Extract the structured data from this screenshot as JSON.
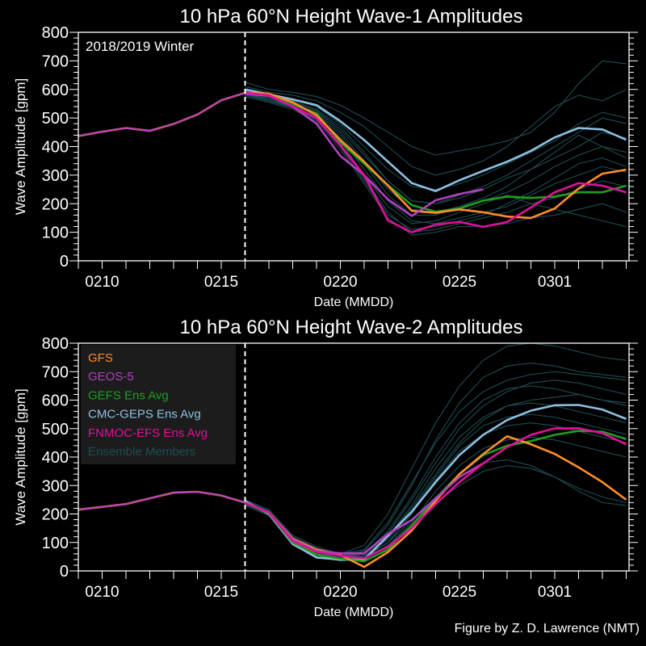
{
  "footer": "Figure by Z. D. Lawrence (NMT)",
  "colors": {
    "background": "#000000",
    "axes": "#ffffff",
    "GFS": "#ff8c2a",
    "GEOS-5": "#b040c0",
    "GEFS Ens Avg": "#1e9e1e",
    "CMC-GEPS Ens Avg": "#8ec0e0",
    "FNMOC-EFS Ens Avg": "#e0109a",
    "Ensemble Members": "#1f4d54",
    "legend_bg": "#1c1c1c"
  },
  "legend": {
    "placement": "top-left (lower panel)",
    "entries": [
      "GFS",
      "GEOS-5",
      "GEFS Ens Avg",
      "CMC-GEPS Ens Avg",
      "FNMOC-EFS Ens Avg",
      "Ensemble Members"
    ]
  },
  "chart_data": [
    {
      "type": "line",
      "title": "10 hPa 60°N   Height Wave-1 Amplitudes",
      "annotation": "2018/2019 Winter",
      "xlabel": "Date (MMDD)",
      "ylabel": "Wave Amplitude [gpm]",
      "xlim": [
        "0209",
        "0304"
      ],
      "ylim": [
        0,
        800
      ],
      "yticks": [
        0,
        100,
        200,
        300,
        400,
        500,
        600,
        700,
        800
      ],
      "xtick_labels": [
        "0210",
        "0215",
        "0220",
        "0225",
        "0301"
      ],
      "forecast_start": "0216",
      "grid": false,
      "observed": {
        "x": [
          "0209",
          "0210",
          "0211",
          "0212",
          "0213",
          "0214",
          "0215",
          "0216"
        ],
        "values": [
          437,
          452,
          465,
          455,
          479,
          512,
          562,
          588
        ]
      },
      "forecast_x": [
        "0216",
        "0217",
        "0218",
        "0219",
        "0220",
        "0221",
        "0222",
        "0223",
        "0224",
        "0225",
        "0226",
        "0227",
        "0228",
        "0301",
        "0302",
        "0303",
        "0304"
      ],
      "series": [
        {
          "name": "GFS",
          "values": [
            588,
            585,
            555,
            510,
            423,
            347,
            263,
            175,
            168,
            180,
            170,
            155,
            150,
            183,
            253,
            305,
            319
          ]
        },
        {
          "name": "GEOS-5",
          "values": [
            585,
            578,
            540,
            480,
            367,
            300,
            215,
            157,
            212,
            234,
            250
          ]
        },
        {
          "name": "GEFS Ens Avg",
          "values": [
            590,
            580,
            550,
            515,
            415,
            340,
            265,
            195,
            172,
            183,
            211,
            225,
            220,
            225,
            240,
            240,
            263
          ]
        },
        {
          "name": "CMC-GEPS Ens Avg",
          "values": [
            600,
            583,
            565,
            545,
            489,
            423,
            347,
            272,
            244,
            282,
            315,
            347,
            385,
            432,
            465,
            460,
            424
          ]
        },
        {
          "name": "FNMOC-EFS Ens Avg",
          "values": [
            588,
            580,
            540,
            500,
            404,
            300,
            141,
            100,
            127,
            136,
            119,
            136,
            187,
            240,
            272,
            263,
            240
          ]
        }
      ],
      "ensemble_members": [
        [
          625,
          600,
          590,
          575,
          545,
          500,
          450,
          400,
          370,
          385,
          400,
          420,
          450,
          520,
          620,
          700,
          690
        ],
        [
          610,
          590,
          580,
          560,
          520,
          470,
          400,
          330,
          300,
          320,
          350,
          400,
          470,
          540,
          580,
          560,
          600
        ],
        [
          600,
          580,
          565,
          540,
          480,
          400,
          320,
          260,
          250,
          270,
          300,
          340,
          380,
          420,
          480,
          520,
          500
        ],
        [
          595,
          575,
          560,
          530,
          470,
          380,
          280,
          210,
          200,
          220,
          250,
          290,
          320,
          360,
          400,
          450,
          430
        ],
        [
          590,
          570,
          550,
          520,
          450,
          350,
          250,
          180,
          170,
          190,
          210,
          240,
          280,
          330,
          370,
          400,
          380
        ],
        [
          585,
          565,
          545,
          510,
          430,
          320,
          210,
          140,
          130,
          150,
          170,
          190,
          230,
          270,
          300,
          330,
          310
        ],
        [
          580,
          560,
          540,
          500,
          410,
          290,
          170,
          100,
          110,
          130,
          150,
          170,
          200,
          220,
          250,
          280,
          260
        ],
        [
          575,
          555,
          530,
          490,
          390,
          270,
          150,
          90,
          100,
          120,
          120,
          130,
          150,
          160,
          180,
          200,
          170
        ],
        [
          590,
          565,
          540,
          505,
          420,
          300,
          190,
          130,
          140,
          170,
          200,
          230,
          200,
          180,
          160,
          140,
          120
        ],
        [
          600,
          575,
          555,
          525,
          460,
          370,
          280,
          210,
          200,
          230,
          260,
          300,
          350,
          400,
          450,
          500,
          480
        ],
        [
          595,
          570,
          550,
          515,
          440,
          340,
          230,
          160,
          160,
          190,
          220,
          260,
          320,
          380,
          440,
          400,
          360
        ],
        [
          585,
          560,
          535,
          495,
          400,
          280,
          160,
          110,
          120,
          140,
          160,
          200,
          240,
          290,
          340,
          360,
          330
        ]
      ]
    },
    {
      "type": "line",
      "title": "10 hPa 60°N   Height Wave-2 Amplitudes",
      "xlabel": "Date (MMDD)",
      "ylabel": "Wave Amplitude [gpm]",
      "xlim": [
        "0209",
        "0304"
      ],
      "ylim": [
        0,
        800
      ],
      "yticks": [
        0,
        100,
        200,
        300,
        400,
        500,
        600,
        700,
        800
      ],
      "xtick_labels": [
        "0210",
        "0215",
        "0220",
        "0225",
        "0301"
      ],
      "forecast_start": "0216",
      "grid": false,
      "observed": {
        "x": [
          "0209",
          "0210",
          "0211",
          "0212",
          "0213",
          "0214",
          "0215",
          "0216"
        ],
        "values": [
          215,
          225,
          235,
          255,
          275,
          278,
          265,
          240
        ]
      },
      "forecast_x": [
        "0216",
        "0217",
        "0218",
        "0219",
        "0220",
        "0221",
        "0222",
        "0223",
        "0224",
        "0225",
        "0226",
        "0227",
        "0228",
        "0301",
        "0302",
        "0303",
        "0304"
      ],
      "series": [
        {
          "name": "GFS",
          "values": [
            240,
            205,
            113,
            75,
            56,
            14,
            66,
            142,
            246,
            340,
            411,
            473,
            445,
            411,
            364,
            312,
            250
          ]
        },
        {
          "name": "GEOS-5",
          "values": [
            240,
            205,
            110,
            70,
            62,
            62,
            130,
            179,
            254,
            330,
            378
          ]
        },
        {
          "name": "GEFS Ens Avg",
          "values": [
            240,
            203,
            100,
            57,
            43,
            34,
            75,
            160,
            254,
            340,
            407,
            440,
            456,
            478,
            492,
            489,
            463
          ]
        },
        {
          "name": "CMC-GEPS Ens Avg",
          "values": [
            245,
            200,
            95,
            47,
            40,
            40,
            123,
            208,
            312,
            407,
            478,
            530,
            563,
            582,
            583,
            567,
            534
          ]
        },
        {
          "name": "FNMOC-EFS Ens Avg",
          "values": [
            240,
            205,
            105,
            67,
            53,
            44,
            85,
            150,
            235,
            312,
            378,
            435,
            478,
            501,
            501,
            484,
            445
          ]
        }
      ],
      "ensemble_members": [
        [
          250,
          215,
          120,
          80,
          60,
          90,
          200,
          360,
          520,
          650,
          740,
          790,
          800,
          790,
          770,
          750,
          740
        ],
        [
          245,
          210,
          110,
          70,
          50,
          70,
          160,
          300,
          460,
          590,
          680,
          720,
          730,
          720,
          700,
          690,
          680
        ],
        [
          240,
          205,
          105,
          65,
          45,
          60,
          140,
          260,
          400,
          520,
          600,
          640,
          650,
          640,
          620,
          600,
          580
        ],
        [
          235,
          200,
          100,
          60,
          40,
          50,
          120,
          230,
          360,
          470,
          540,
          580,
          590,
          580,
          560,
          540,
          520
        ],
        [
          230,
          195,
          95,
          55,
          35,
          45,
          100,
          200,
          320,
          420,
          480,
          510,
          520,
          510,
          490,
          470,
          450
        ],
        [
          235,
          200,
          100,
          55,
          40,
          40,
          90,
          170,
          280,
          370,
          430,
          460,
          470,
          460,
          440,
          420,
          400
        ],
        [
          240,
          205,
          105,
          60,
          45,
          50,
          100,
          180,
          260,
          330,
          380,
          390,
          370,
          330,
          280,
          240,
          230
        ],
        [
          245,
          210,
          115,
          75,
          55,
          60,
          120,
          220,
          340,
          450,
          530,
          580,
          600,
          610,
          620,
          600,
          590
        ],
        [
          230,
          195,
          90,
          50,
          35,
          40,
          90,
          160,
          240,
          300,
          350,
          370,
          360,
          330,
          290,
          260,
          240
        ],
        [
          240,
          210,
          110,
          70,
          50,
          60,
          130,
          250,
          380,
          500,
          580,
          630,
          660,
          670,
          660,
          640,
          620
        ],
        [
          235,
          200,
          100,
          60,
          45,
          55,
          110,
          210,
          330,
          440,
          510,
          540,
          550,
          540,
          520,
          500,
          480
        ],
        [
          250,
          215,
          125,
          85,
          60,
          75,
          170,
          310,
          450,
          560,
          630,
          670,
          690,
          700,
          690,
          680,
          670
        ]
      ]
    }
  ]
}
